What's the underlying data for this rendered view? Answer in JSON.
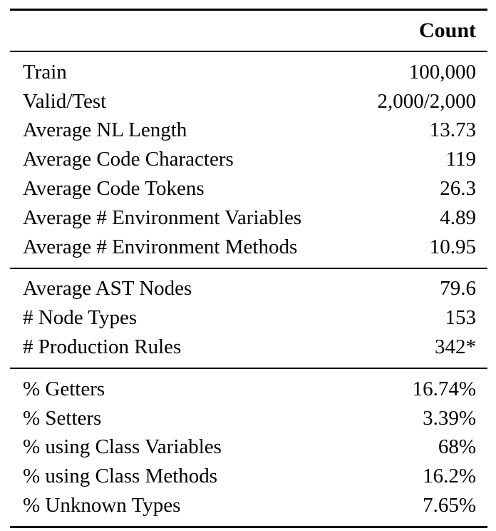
{
  "table": {
    "header": {
      "count": "Count"
    },
    "sections": [
      {
        "rows": [
          {
            "label": "Train",
            "value": "100,000"
          },
          {
            "label": "Valid/Test",
            "value": "2,000/2,000"
          },
          {
            "label": "Average NL Length",
            "value": "13.73"
          },
          {
            "label": "Average Code Characters",
            "value": "119"
          },
          {
            "label": "Average Code Tokens",
            "value": "26.3"
          },
          {
            "label": "Average # Environment Variables",
            "value": "4.89"
          },
          {
            "label": "Average # Environment Methods",
            "value": "10.95"
          }
        ]
      },
      {
        "rows": [
          {
            "label": "Average AST Nodes",
            "value": "79.6"
          },
          {
            "label": "# Node Types",
            "value": "153"
          },
          {
            "label": "# Production Rules",
            "value": "342*"
          }
        ]
      },
      {
        "rows": [
          {
            "label": "% Getters",
            "value": "16.74%"
          },
          {
            "label": "% Setters",
            "value": "3.39%"
          },
          {
            "label": "% using Class Variables",
            "value": "68%"
          },
          {
            "label": "% using Class Methods",
            "value": "16.2%"
          },
          {
            "label": "% Unknown Types",
            "value": "7.65%"
          }
        ]
      }
    ]
  }
}
